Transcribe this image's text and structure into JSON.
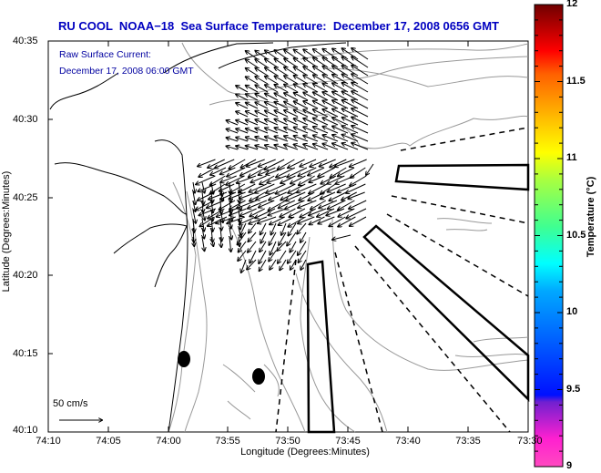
{
  "map": {
    "title": "RU COOL  NOAA−18  Sea Surface Temperature:  December 17, 2008 0656 GMT",
    "annotation_line1": "Raw Surface Current:",
    "annotation_line2": "December 17, 2008 06:00 GMT",
    "x_axis_label": "Longitude (Degrees:Minutes)",
    "y_axis_label": "Latitude (Degrees:Minutes)",
    "x_ticks": [
      "74:10",
      "74:05",
      "74:00",
      "73:55",
      "73:50",
      "73:45",
      "73:40",
      "73:35",
      "73:30"
    ],
    "y_ticks": [
      "40:35",
      "40:30",
      "40:25",
      "40:20",
      "40:15",
      "40:10"
    ],
    "scale_arrow_label": "50 cm/s",
    "colorbar": {
      "label": "Temperature (°C)",
      "ticks": [
        "12",
        "11.5",
        "11",
        "10.5",
        "10",
        "9.5",
        "9"
      ],
      "min": 9,
      "max": 12,
      "colors": [
        "#ff40c0",
        "#ff20d0",
        "#8020d0",
        "#4030c0",
        "#0010ff",
        "#0060ff",
        "#00a0ff",
        "#00ffff",
        "#40ffa0",
        "#80ff60",
        "#ffff00",
        "#ffc000",
        "#ff8000",
        "#ff4000",
        "#ff0000",
        "#c00000",
        "#700000"
      ]
    },
    "colors": {
      "title": "#0000c0",
      "annotation": "#0000a0",
      "coastline": "#000000",
      "bathymetry": "#909090"
    }
  }
}
